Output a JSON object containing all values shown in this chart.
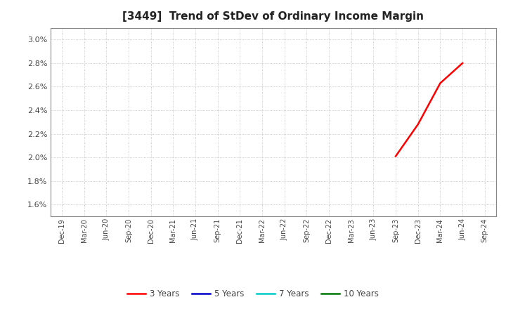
{
  "title": "[3449]  Trend of StDev of Ordinary Income Margin",
  "title_fontsize": 11,
  "background_color": "#ffffff",
  "plot_bg_color": "#ffffff",
  "grid_color": "#bbbbbb",
  "ylim": [
    0.015,
    0.031
  ],
  "yticks": [
    0.016,
    0.018,
    0.02,
    0.022,
    0.024,
    0.026,
    0.028,
    0.03
  ],
  "series": {
    "3 Years": {
      "color": "#ff0000",
      "dates": [
        "Sep-23",
        "Dec-23",
        "Mar-24",
        "Jun-24"
      ],
      "values": [
        0.0201,
        0.0228,
        0.0263,
        0.028
      ]
    },
    "5 Years": {
      "color": "#0000cc",
      "dates": [],
      "values": []
    },
    "7 Years": {
      "color": "#00cccc",
      "dates": [],
      "values": []
    },
    "10 Years": {
      "color": "#007700",
      "dates": [],
      "values": []
    }
  },
  "x_tick_labels": [
    "Dec-19",
    "Mar-20",
    "Jun-20",
    "Sep-20",
    "Dec-20",
    "Mar-21",
    "Jun-21",
    "Sep-21",
    "Dec-21",
    "Mar-22",
    "Jun-22",
    "Sep-22",
    "Dec-22",
    "Mar-23",
    "Jun-23",
    "Sep-23",
    "Dec-23",
    "Mar-24",
    "Jun-24",
    "Sep-24"
  ],
  "legend_order": [
    "3 Years",
    "5 Years",
    "7 Years",
    "10 Years"
  ]
}
